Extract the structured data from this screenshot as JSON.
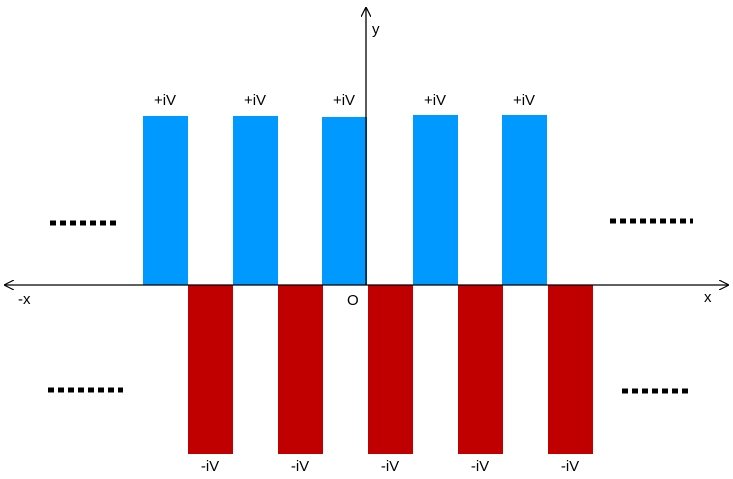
{
  "axes": {
    "y": "y",
    "x": "x",
    "neg_x": "-x",
    "origin": "O"
  },
  "pulses": {
    "positive": [
      "+iV",
      "+iV",
      "+iV",
      "+iV",
      "+iV"
    ],
    "negative": [
      "-iV",
      "-iV",
      "-iV",
      "-iV",
      "-iV"
    ]
  }
}
